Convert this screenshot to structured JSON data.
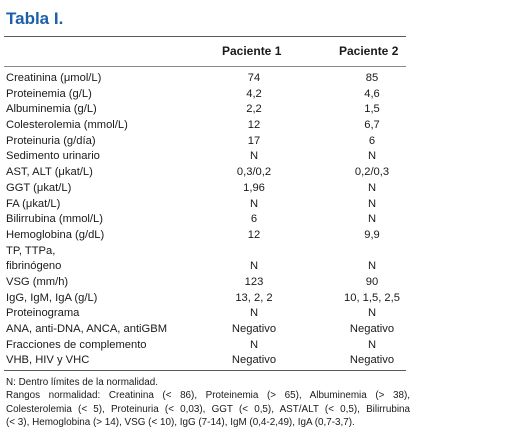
{
  "title": "Tabla I.",
  "headers": {
    "col1": "Paciente 1",
    "col2": "Paciente 2"
  },
  "rows": [
    {
      "label": "Creatinina (μmol/L)",
      "p1": "74",
      "p2": "85"
    },
    {
      "label": "Proteinemia (g/L)",
      "p1": "4,2",
      "p2": "4,6"
    },
    {
      "label": "Albuminemia (g/L)",
      "p1": "2,2",
      "p2": "1,5"
    },
    {
      "label": "Colesterolemia (mmol/L)",
      "p1": "12",
      "p2": "6,7"
    },
    {
      "label": "Proteinuria (g/día)",
      "p1": "17",
      "p2": "6"
    },
    {
      "label": "Sedimento urinario",
      "p1": "N",
      "p2": "N"
    },
    {
      "label": "AST, ALT (μkat/L)",
      "p1": "0,3/0,2",
      "p2": "0,2/0,3"
    },
    {
      "label": "GGT (μkat/L)",
      "p1": "1,96",
      "p2": "N"
    },
    {
      "label": "FA (μkat/L)",
      "p1": "N",
      "p2": "N"
    },
    {
      "label": "Bilirrubina (mmol/L)",
      "p1": "6",
      "p2": "N"
    },
    {
      "label": "Hemoglobina (g/dL)",
      "p1": "12",
      "p2": "9,9"
    },
    {
      "label": "TP, TTPa,",
      "p1": "",
      "p2": ""
    },
    {
      "label": "fibrinógeno",
      "p1": "N",
      "p2": "N"
    },
    {
      "label": "VSG (mm/h)",
      "p1": "123",
      "p2": "90"
    },
    {
      "label": "IgG, IgM, IgA (g/L)",
      "p1": "13, 2, 2",
      "p2": "10, 1,5, 2,5"
    },
    {
      "label": "Proteinograma",
      "p1": "N",
      "p2": "N"
    },
    {
      "label": "ANA, anti-DNA, ANCA, antiGBM",
      "p1": "Negativo",
      "p2": "Negativo"
    },
    {
      "label": "Fracciones de complemento",
      "p1": "N",
      "p2": "N"
    },
    {
      "label": "VHB, HIV y VHC",
      "p1": "Negativo",
      "p2": "Negativo"
    }
  ],
  "footnotes": [
    "N: Dentro límites de la normalidad.",
    "Rangos normalidad: Creatinina (< 86), Proteinemia (> 65), Albuminemia (> 38),",
    "Colesterolemia (< 5), Proteinuria (< 0,03), GGT (< 0,5), AST/ALT (< 0,5), Bilirrubina",
    "(< 3), Hemoglobina (> 14), VSG (< 10), IgG (7-14), IgM (0,4-2,49), IgA (0,7-3,7)."
  ]
}
